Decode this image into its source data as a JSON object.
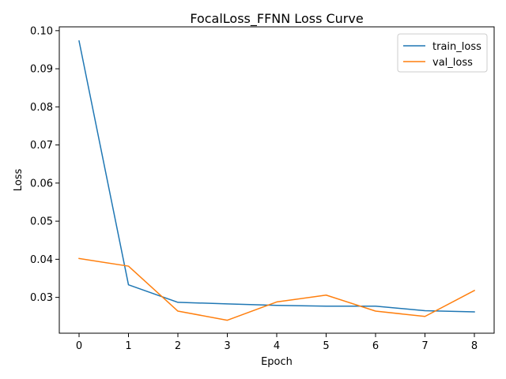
{
  "chart_data": {
    "type": "line",
    "title": "FocalLoss_FFNN Loss Curve",
    "xlabel": "Epoch",
    "ylabel": "Loss",
    "x": [
      0,
      1,
      2,
      3,
      4,
      5,
      6,
      7,
      8
    ],
    "xlim": [
      -0.4,
      8.4
    ],
    "ylim": [
      0.0206,
      0.101
    ],
    "xticks": [
      0,
      1,
      2,
      3,
      4,
      5,
      6,
      7,
      8
    ],
    "yticks": [
      0.03,
      0.04,
      0.05,
      0.06,
      0.07,
      0.08,
      0.09,
      0.1
    ],
    "ytick_labels": [
      "0.03",
      "0.04",
      "0.05",
      "0.06",
      "0.07",
      "0.08",
      "0.09",
      "0.10"
    ],
    "grid": false,
    "legend_position": "top-right",
    "series": [
      {
        "name": "train_loss",
        "color": "#1f77b4",
        "values": [
          0.0973,
          0.0333,
          0.0287,
          0.0283,
          0.0279,
          0.0277,
          0.0277,
          0.0265,
          0.0262
        ]
      },
      {
        "name": "val_loss",
        "color": "#ff7f0e",
        "values": [
          0.0402,
          0.0382,
          0.0264,
          0.024,
          0.0288,
          0.0306,
          0.0264,
          0.025,
          0.0318
        ]
      }
    ]
  }
}
